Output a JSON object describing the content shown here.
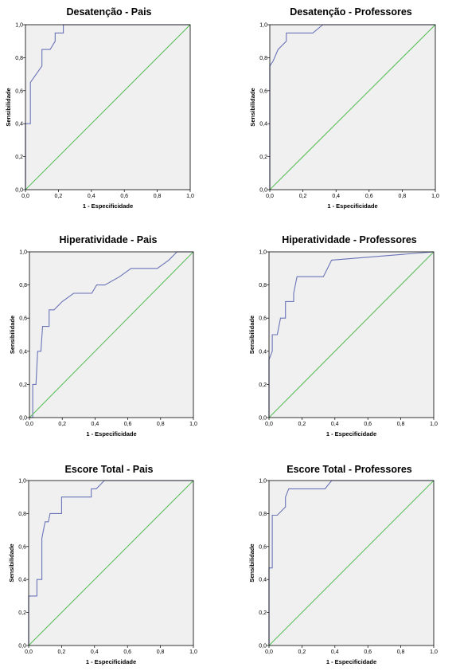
{
  "chart_data": [
    {
      "type": "line",
      "title": "Desatenção - Pais",
      "xlabel": "1 - Especificidade",
      "ylabel": "Sensibilidade",
      "xlim": [
        0,
        1
      ],
      "ylim": [
        0,
        1
      ],
      "xticks": [
        "0,0",
        "0,2",
        "0,4",
        "0,6",
        "0,8",
        "1,0"
      ],
      "yticks": [
        "0,0",
        "0,2",
        "0,4",
        "0,6",
        "0,8",
        "1,0"
      ],
      "grid": false,
      "series": [
        {
          "color": "#6a74b8",
          "points": [
            [
              0,
              0
            ],
            [
              0,
              0.4
            ],
            [
              0.03,
              0.4
            ],
            [
              0.03,
              0.65
            ],
            [
              0.1,
              0.75
            ],
            [
              0.1,
              0.85
            ],
            [
              0.15,
              0.85
            ],
            [
              0.18,
              0.9
            ],
            [
              0.18,
              0.95
            ],
            [
              0.23,
              0.95
            ],
            [
              0.23,
              1.0
            ],
            [
              1,
              1
            ]
          ]
        },
        {
          "color": "#5dbf5d",
          "points": [
            [
              0,
              0
            ],
            [
              1,
              1
            ]
          ]
        }
      ]
    },
    {
      "type": "line",
      "title": "Desatenção - Professores",
      "xlabel": "1 - Especificidade",
      "ylabel": "Sensibilidade",
      "xlim": [
        0,
        1
      ],
      "ylim": [
        0,
        1
      ],
      "xticks": [
        "0,0",
        "0,2",
        "0,4",
        "0,6",
        "0,8",
        "1,0"
      ],
      "yticks": [
        "0,0",
        "0,2",
        "0,4",
        "0,6",
        "0,8",
        "1,0"
      ],
      "grid": false,
      "series": [
        {
          "color": "#6a74b8",
          "points": [
            [
              0,
              0
            ],
            [
              0,
              0.75
            ],
            [
              0.02,
              0.78
            ],
            [
              0.05,
              0.85
            ],
            [
              0.1,
              0.9
            ],
            [
              0.1,
              0.95
            ],
            [
              0.26,
              0.95
            ],
            [
              0.32,
              1.0
            ],
            [
              1,
              1
            ]
          ]
        },
        {
          "color": "#5dbf5d",
          "points": [
            [
              0,
              0
            ],
            [
              1,
              1
            ]
          ]
        }
      ]
    },
    {
      "type": "line",
      "title": "Hiperatividade  - Pais",
      "xlabel": "1 - Especificidade",
      "ylabel": "Sensibilidade",
      "xlim": [
        0,
        1
      ],
      "ylim": [
        0,
        1
      ],
      "xticks": [
        "0,0",
        "0,2",
        "0,4",
        "0,6",
        "0,8",
        "1,0"
      ],
      "yticks": [
        "0,0",
        "0,2",
        "0,4",
        "0,6",
        "0,8",
        "1,0"
      ],
      "grid": false,
      "series": [
        {
          "color": "#6a74b8",
          "points": [
            [
              0,
              0
            ],
            [
              0.02,
              0
            ],
            [
              0.02,
              0.2
            ],
            [
              0.04,
              0.2
            ],
            [
              0.05,
              0.4
            ],
            [
              0.07,
              0.4
            ],
            [
              0.08,
              0.55
            ],
            [
              0.12,
              0.55
            ],
            [
              0.12,
              0.65
            ],
            [
              0.15,
              0.65
            ],
            [
              0.2,
              0.7
            ],
            [
              0.27,
              0.75
            ],
            [
              0.38,
              0.75
            ],
            [
              0.41,
              0.8
            ],
            [
              0.46,
              0.8
            ],
            [
              0.55,
              0.85
            ],
            [
              0.62,
              0.9
            ],
            [
              0.78,
              0.9
            ],
            [
              0.85,
              0.95
            ],
            [
              0.9,
              1.0
            ],
            [
              1,
              1
            ]
          ]
        },
        {
          "color": "#5dbf5d",
          "points": [
            [
              0,
              0
            ],
            [
              1,
              1
            ]
          ]
        }
      ]
    },
    {
      "type": "line",
      "title": "Hiperatividade  - Professores",
      "xlabel": "1 - Especificidade",
      "ylabel": "Sensibilidade",
      "xlim": [
        0,
        1
      ],
      "ylim": [
        0,
        1
      ],
      "xticks": [
        "0,0",
        "0,2",
        "0,4",
        "0,6",
        "0,8",
        "1,0"
      ],
      "yticks": [
        "0,0",
        "0,2",
        "0,4",
        "0,6",
        "0,8",
        "1,0"
      ],
      "grid": false,
      "series": [
        {
          "color": "#6a74b8",
          "points": [
            [
              0,
              0
            ],
            [
              0,
              0.35
            ],
            [
              0.02,
              0.4
            ],
            [
              0.02,
              0.5
            ],
            [
              0.05,
              0.5
            ],
            [
              0.07,
              0.6
            ],
            [
              0.1,
              0.6
            ],
            [
              0.1,
              0.7
            ],
            [
              0.15,
              0.7
            ],
            [
              0.15,
              0.75
            ],
            [
              0.17,
              0.85
            ],
            [
              0.33,
              0.85
            ],
            [
              0.38,
              0.95
            ],
            [
              1,
              1
            ]
          ]
        },
        {
          "color": "#5dbf5d",
          "points": [
            [
              0,
              0
            ],
            [
              1,
              1
            ]
          ]
        }
      ]
    },
    {
      "type": "line",
      "title": "Escore Total - Pais",
      "xlabel": "1 - Especificidade",
      "ylabel": "Sensibilidade",
      "xlim": [
        0,
        1
      ],
      "ylim": [
        0,
        1
      ],
      "xticks": [
        "0,0",
        "0,2",
        "0,4",
        "0,6",
        "0,8",
        "1,0"
      ],
      "yticks": [
        "0,0",
        "0,2",
        "0,4",
        "0,6",
        "0,8",
        "1,0"
      ],
      "grid": false,
      "series": [
        {
          "color": "#6a74b8",
          "points": [
            [
              0,
              0
            ],
            [
              0,
              0.3
            ],
            [
              0.05,
              0.3
            ],
            [
              0.05,
              0.4
            ],
            [
              0.08,
              0.4
            ],
            [
              0.08,
              0.65
            ],
            [
              0.1,
              0.75
            ],
            [
              0.12,
              0.75
            ],
            [
              0.13,
              0.8
            ],
            [
              0.2,
              0.8
            ],
            [
              0.2,
              0.9
            ],
            [
              0.38,
              0.9
            ],
            [
              0.38,
              0.95
            ],
            [
              0.41,
              0.95
            ],
            [
              0.46,
              1.0
            ],
            [
              1,
              1
            ]
          ]
        },
        {
          "color": "#5dbf5d",
          "points": [
            [
              0,
              0
            ],
            [
              1,
              1
            ]
          ]
        }
      ]
    },
    {
      "type": "line",
      "title": "Escore Total - Professores",
      "xlabel": "1 - Especificidade",
      "ylabel": "Sensibilidade",
      "xlim": [
        0,
        1
      ],
      "ylim": [
        0,
        1
      ],
      "xticks": [
        "0,0",
        "0,2",
        "0,4",
        "0,6",
        "0,8",
        "1,0"
      ],
      "yticks": [
        "0,0",
        "0,2",
        "0,4",
        "0,6",
        "0,8",
        "1,0"
      ],
      "grid": false,
      "series": [
        {
          "color": "#6a74b8",
          "points": [
            [
              0,
              0
            ],
            [
              0,
              0.47
            ],
            [
              0.02,
              0.47
            ],
            [
              0.02,
              0.79
            ],
            [
              0.05,
              0.79
            ],
            [
              0.1,
              0.84
            ],
            [
              0.1,
              0.9
            ],
            [
              0.12,
              0.95
            ],
            [
              0.34,
              0.95
            ],
            [
              0.38,
              1.0
            ],
            [
              1,
              1
            ]
          ]
        },
        {
          "color": "#5dbf5d",
          "points": [
            [
              0,
              0
            ],
            [
              1,
              1
            ]
          ]
        }
      ]
    }
  ]
}
